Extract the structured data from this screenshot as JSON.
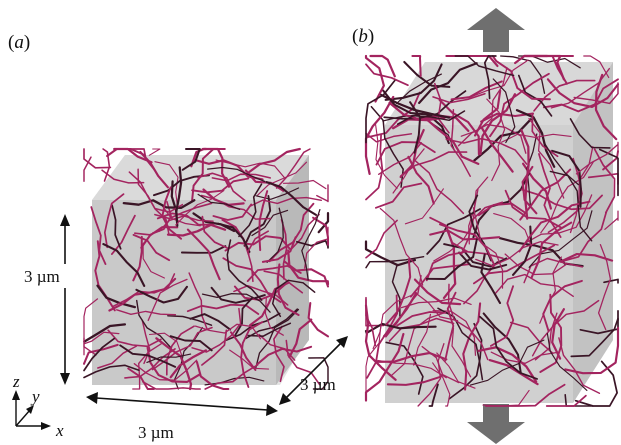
{
  "panel_a": {
    "label_open": "(",
    "label_letter": "a",
    "label_close": ")",
    "dim_height": "3 µm",
    "dim_width": "3 µm",
    "dim_depth": "3 µm"
  },
  "panel_b": {
    "label_open": "(",
    "label_letter": "b",
    "label_close": ")",
    "arrow_top_icon": "arrow-up",
    "arrow_bottom_icon": "arrow-down"
  },
  "axes": {
    "z": "z",
    "y": "y",
    "x": "x"
  },
  "colors": {
    "fiber": "#a3245f",
    "fiber_dark": "#3a1526",
    "box_front": "#c9c9c9",
    "box_top": "#dadada",
    "box_side": "#b9b9b9",
    "arrow": "#6f6f6f"
  }
}
